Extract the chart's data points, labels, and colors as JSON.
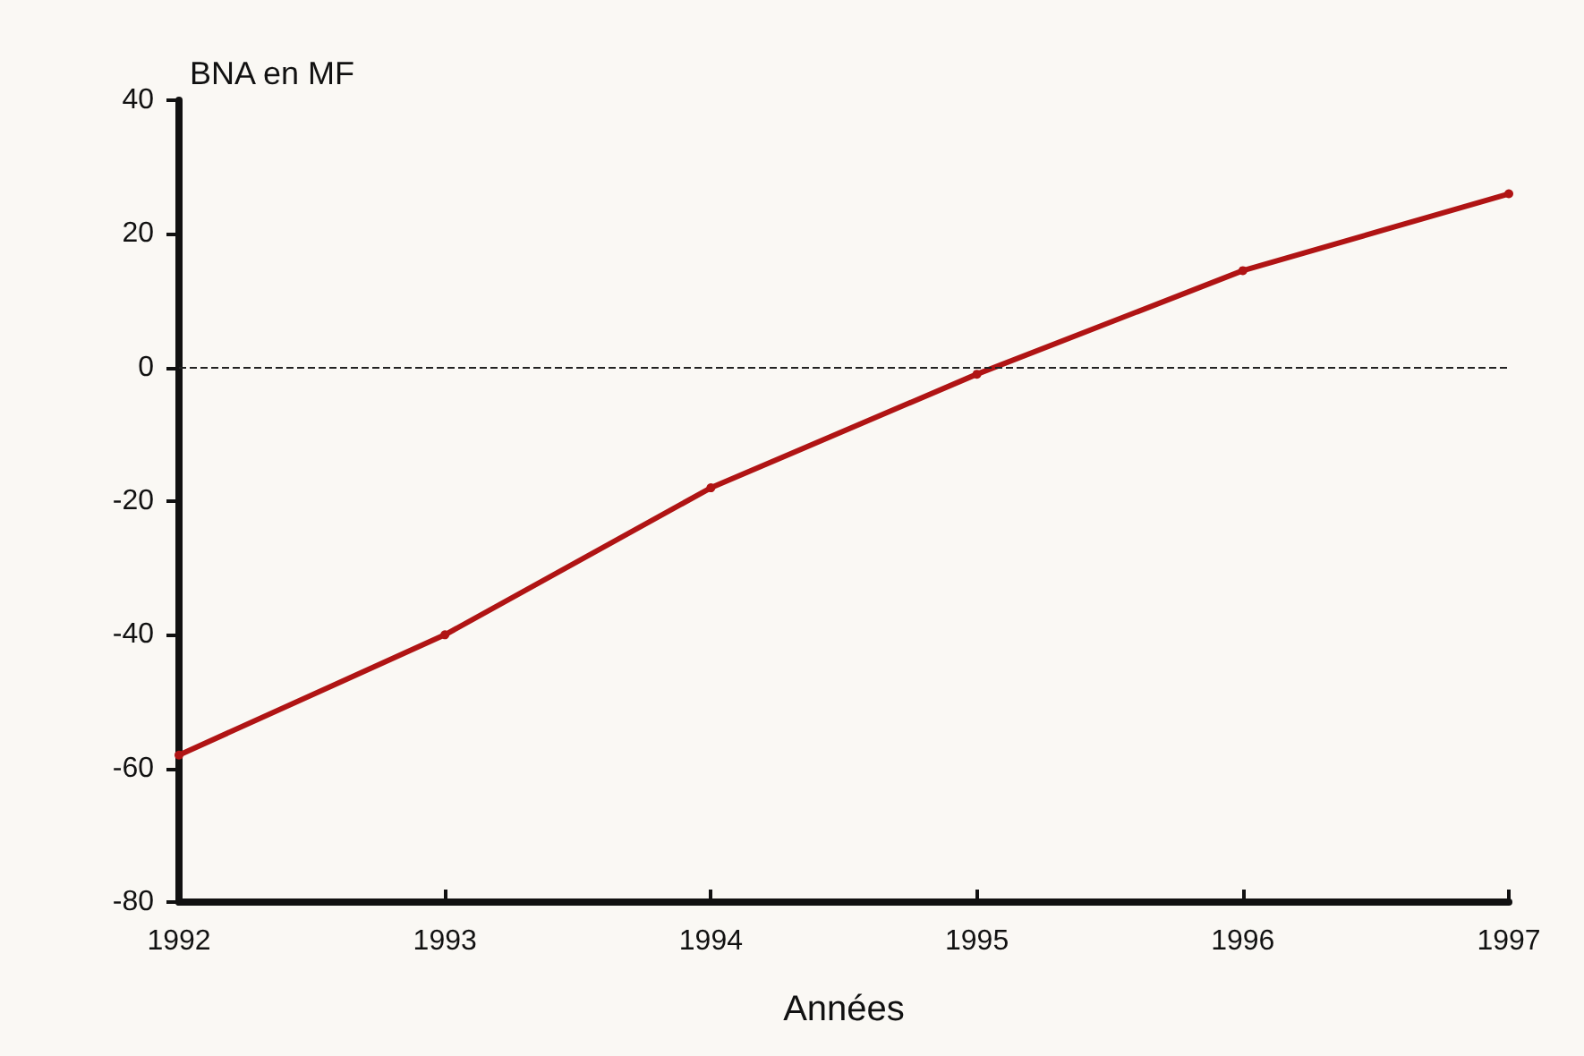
{
  "chart_data": {
    "type": "line",
    "ylabel": "BNA en MF",
    "xlabel": "Années",
    "x": [
      1992,
      1993,
      1994,
      1995,
      1996,
      1997
    ],
    "series": [
      {
        "color": "#b01414",
        "values": [
          -58,
          -40,
          -18,
          -1,
          14.5,
          26
        ]
      }
    ],
    "xlim": [
      1992,
      1997
    ],
    "xticks": [
      1992,
      1993,
      1994,
      1995,
      1996,
      1997
    ],
    "ylim": [
      -80,
      40
    ],
    "yticks": [
      -80,
      -60,
      -40,
      -20,
      0,
      20,
      40
    ],
    "ref_lines": [
      {
        "axis": "y",
        "value": 0,
        "color": "#222222",
        "line_style": "dashed"
      }
    ],
    "grid": false,
    "marker": "circle",
    "line_style": "solid"
  }
}
